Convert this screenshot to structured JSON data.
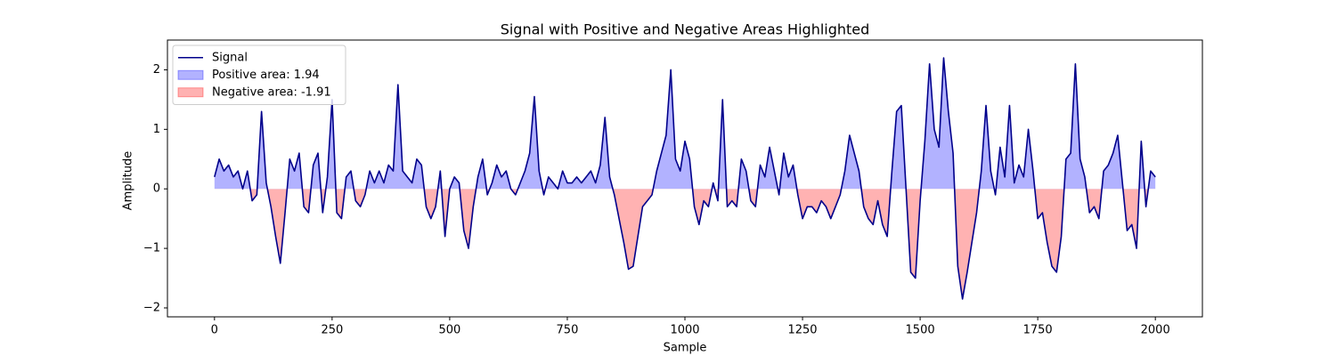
{
  "chart_data": {
    "type": "line",
    "title": "Signal with Positive and Negative Areas Highlighted",
    "xlabel": "Sample",
    "ylabel": "Amplitude",
    "x": [
      0,
      10,
      20,
      30,
      40,
      50,
      60,
      70,
      80,
      90,
      100,
      110,
      120,
      130,
      140,
      150,
      160,
      170,
      180,
      190,
      200,
      210,
      220,
      230,
      240,
      250,
      260,
      270,
      280,
      290,
      300,
      310,
      320,
      330,
      340,
      350,
      360,
      370,
      380,
      390,
      400,
      410,
      420,
      430,
      440,
      450,
      460,
      470,
      480,
      490,
      500,
      510,
      520,
      530,
      540,
      550,
      560,
      570,
      580,
      590,
      600,
      610,
      620,
      630,
      640,
      650,
      660,
      670,
      680,
      690,
      700,
      710,
      720,
      730,
      740,
      750,
      760,
      770,
      780,
      790,
      800,
      810,
      820,
      830,
      840,
      850,
      860,
      870,
      880,
      890,
      900,
      910,
      920,
      930,
      940,
      950,
      960,
      970,
      980,
      990,
      1000,
      1010,
      1020,
      1030,
      1040,
      1050,
      1060,
      1070,
      1080,
      1090,
      1100,
      1110,
      1120,
      1130,
      1140,
      1150,
      1160,
      1170,
      1180,
      1190,
      1200,
      1210,
      1220,
      1230,
      1240,
      1250,
      1260,
      1270,
      1280,
      1290,
      1300,
      1310,
      1320,
      1330,
      1340,
      1350,
      1360,
      1370,
      1380,
      1390,
      1400,
      1410,
      1420,
      1430,
      1440,
      1450,
      1460,
      1470,
      1480,
      1490,
      1500,
      1510,
      1520,
      1530,
      1540,
      1550,
      1560,
      1570,
      1580,
      1590,
      1600,
      1610,
      1620,
      1630,
      1640,
      1650,
      1660,
      1670,
      1680,
      1690,
      1700,
      1710,
      1720,
      1730,
      1740,
      1750,
      1760,
      1770,
      1780,
      1790,
      1800,
      1810,
      1820,
      1830,
      1840,
      1850,
      1860,
      1870,
      1880,
      1890,
      1900,
      1910,
      1920,
      1930,
      1940,
      1950,
      1960,
      1970,
      1980,
      1990,
      2000
    ],
    "series": [
      {
        "name": "Signal",
        "color": "#00008b",
        "values": [
          0.2,
          0.5,
          0.3,
          0.4,
          0.2,
          0.3,
          0.0,
          0.3,
          -0.2,
          -0.1,
          1.3,
          0.1,
          -0.3,
          -0.8,
          -1.25,
          -0.4,
          0.5,
          0.3,
          0.6,
          -0.3,
          -0.4,
          0.4,
          0.6,
          -0.4,
          0.2,
          1.5,
          -0.4,
          -0.5,
          0.2,
          0.3,
          -0.2,
          -0.3,
          -0.1,
          0.3,
          0.1,
          0.3,
          0.1,
          0.4,
          0.3,
          1.75,
          0.3,
          0.2,
          0.1,
          0.5,
          0.4,
          -0.3,
          -0.5,
          -0.3,
          0.3,
          -0.8,
          0.0,
          0.2,
          0.1,
          -0.7,
          -1.0,
          -0.3,
          0.2,
          0.5,
          -0.1,
          0.1,
          0.4,
          0.2,
          0.3,
          0.0,
          -0.1,
          0.1,
          0.3,
          0.6,
          1.55,
          0.3,
          -0.1,
          0.2,
          0.1,
          0.0,
          0.3,
          0.1,
          0.1,
          0.2,
          0.1,
          0.2,
          0.3,
          0.1,
          0.4,
          1.2,
          0.2,
          -0.1,
          -0.5,
          -0.9,
          -1.35,
          -1.3,
          -0.8,
          -0.3,
          -0.2,
          -0.1,
          0.3,
          0.6,
          0.9,
          2.0,
          0.5,
          0.3,
          0.8,
          0.5,
          -0.3,
          -0.6,
          -0.2,
          -0.3,
          0.1,
          -0.2,
          1.5,
          -0.3,
          -0.2,
          -0.3,
          0.5,
          0.3,
          -0.2,
          -0.3,
          0.4,
          0.2,
          0.7,
          0.3,
          -0.1,
          0.6,
          0.2,
          0.4,
          -0.1,
          -0.5,
          -0.3,
          -0.3,
          -0.4,
          -0.2,
          -0.3,
          -0.5,
          -0.3,
          -0.1,
          0.3,
          0.9,
          0.6,
          0.3,
          -0.3,
          -0.5,
          -0.6,
          -0.2,
          -0.6,
          -0.8,
          0.3,
          1.3,
          1.4,
          0.0,
          -1.4,
          -1.5,
          -0.2,
          0.8,
          2.1,
          1.0,
          0.7,
          2.2,
          1.3,
          0.6,
          -1.3,
          -1.85,
          -1.4,
          -0.9,
          -0.4,
          0.3,
          1.4,
          0.3,
          -0.1,
          0.7,
          0.2,
          1.4,
          0.1,
          0.4,
          0.2,
          1.0,
          0.3,
          -0.5,
          -0.4,
          -0.9,
          -1.3,
          -1.4,
          -0.8,
          0.5,
          0.6,
          2.1,
          0.5,
          0.2,
          -0.4,
          -0.3,
          -0.5,
          0.3,
          0.4,
          0.6,
          0.9,
          0.1,
          -0.7,
          -0.6,
          -1.0,
          0.8,
          -0.3,
          0.3,
          0.2
        ]
      },
      {
        "name": "Positive area: 1.94",
        "color": "#0000ff",
        "fill": "above"
      },
      {
        "name": "Negative area: -1.91",
        "color": "#ff0000",
        "fill": "below"
      }
    ],
    "xlim": [
      -100,
      2100
    ],
    "xticks": [
      0,
      250,
      500,
      750,
      1000,
      1250,
      1500,
      1750,
      2000
    ],
    "ylim": [
      -2.15,
      2.5
    ],
    "yticks": [
      {
        "value": -2,
        "label": "−2"
      },
      {
        "value": -1,
        "label": "−1"
      },
      0,
      1,
      2
    ],
    "legend": "upper-left"
  }
}
